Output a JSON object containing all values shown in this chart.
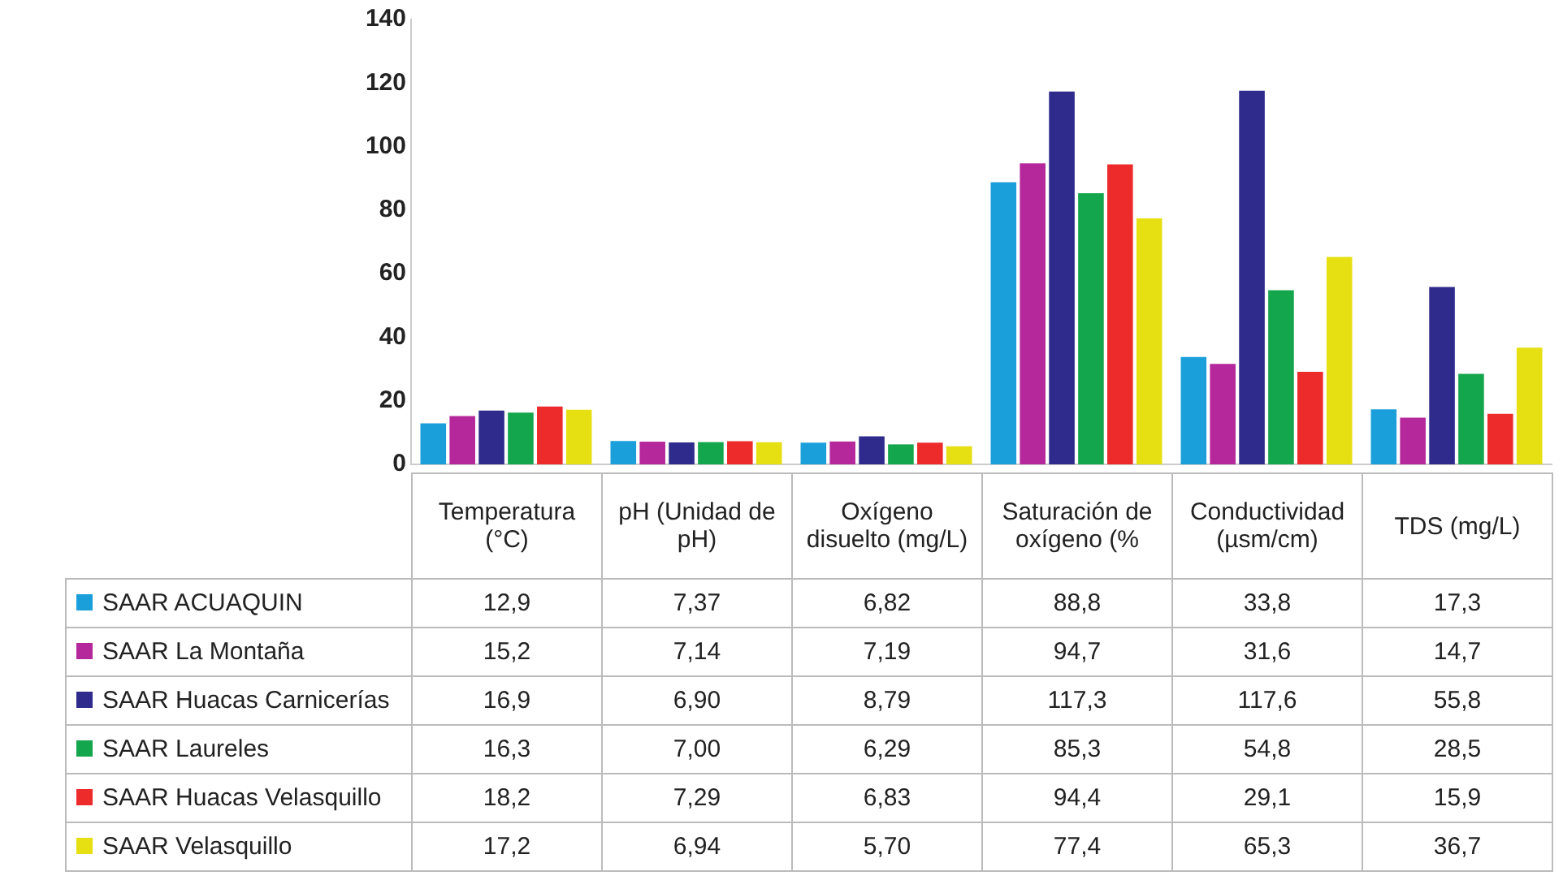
{
  "chart_data": {
    "type": "bar",
    "categories": [
      "Temperatura (°C)",
      "pH (Unidad de pH)",
      "Oxígeno disuelto (mg/L)",
      "Saturación de oxígeno (%",
      "Conductividad (µsm/cm)",
      "TDS (mg/L)"
    ],
    "series": [
      {
        "name": "SAAR ACUAQUIN",
        "color": "#1a9fdb",
        "values": [
          12.9,
          7.37,
          6.82,
          88.8,
          33.8,
          17.3
        ],
        "value_labels": [
          "12,9",
          "7,37",
          "6,82",
          "88,8",
          "33,8",
          "17,3"
        ]
      },
      {
        "name": "SAAR La Montaña",
        "color": "#b4289b",
        "values": [
          15.2,
          7.14,
          7.19,
          94.7,
          31.6,
          14.7
        ],
        "value_labels": [
          "15,2",
          "7,14",
          "7,19",
          "94,7",
          "31,6",
          "14,7"
        ]
      },
      {
        "name": "SAAR Huacas Carnicerías",
        "color": "#2e2b8c",
        "values": [
          16.9,
          6.9,
          8.79,
          117.3,
          117.6,
          55.8
        ],
        "value_labels": [
          "16,9",
          "6,90",
          "8,79",
          "117,3",
          "117,6",
          "55,8"
        ]
      },
      {
        "name": "SAAR Laureles",
        "color": "#14a64c",
        "values": [
          16.3,
          7.0,
          6.29,
          85.3,
          54.8,
          28.5
        ],
        "value_labels": [
          "16,3",
          "7,00",
          "6,29",
          "85,3",
          "54,8",
          "28,5"
        ]
      },
      {
        "name": "SAAR Huacas Velasquillo",
        "color": "#ee2b2b",
        "values": [
          18.2,
          7.29,
          6.83,
          94.4,
          29.1,
          15.9
        ],
        "value_labels": [
          "18,2",
          "7,29",
          "6,83",
          "94,4",
          "29,1",
          "15,9"
        ]
      },
      {
        "name": "SAAR Velasquillo",
        "color": "#e6df12",
        "values": [
          17.2,
          6.94,
          5.7,
          77.4,
          65.3,
          36.7
        ],
        "value_labels": [
          "17,2",
          "6,94",
          "5,70",
          "77,4",
          "65,3",
          "36,7"
        ]
      }
    ],
    "ylim": [
      0,
      140
    ],
    "yticks": [
      0,
      20,
      40,
      60,
      80,
      100,
      120,
      140
    ],
    "grid": false,
    "legend": "bottom"
  }
}
